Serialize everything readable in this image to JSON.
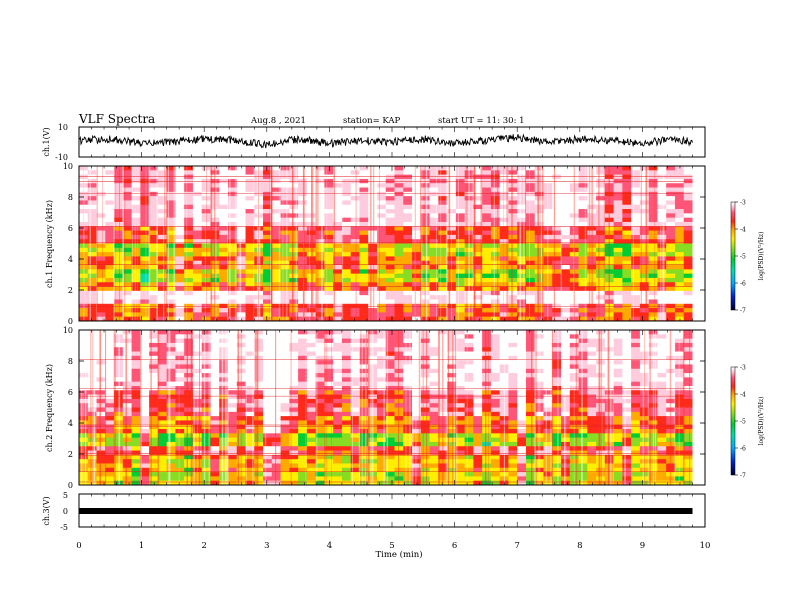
{
  "header": {
    "title": "VLF Spectra",
    "date": "Aug.8 , 2021",
    "station": "station= KAP",
    "start_ut": "start UT = 11: 30: 1"
  },
  "colors": {
    "spectrogram_scale": [
      "#000033",
      "#0022cc",
      "#00aaff",
      "#00ddaa",
      "#00cc33",
      "#88dd22",
      "#ffee00",
      "#ffaa00",
      "#ff2a1a",
      "#ff5577",
      "#ffccdd",
      "#ffffff"
    ]
  },
  "chart_data": [
    {
      "type": "line",
      "name": "ch1-waveform",
      "ylabel": "ch.1(V)",
      "ylim": [
        -10,
        10
      ],
      "yticks": [
        "10",
        "-10"
      ],
      "x": [
        0,
        0.5,
        1,
        1.5,
        2,
        2.5,
        3,
        3.5,
        4,
        4.5,
        5,
        5.5,
        6,
        6.5,
        7,
        7.5,
        8,
        8.5,
        9,
        9.5,
        9.8
      ],
      "y": [
        1,
        2,
        -1,
        0,
        2,
        1,
        -2,
        2,
        -1,
        1,
        0,
        2,
        -1,
        1,
        3,
        0,
        2,
        1,
        -1,
        2,
        0
      ]
    },
    {
      "type": "heatmap",
      "name": "ch1-spectrogram",
      "ylabel": "ch.1  Frequency (kHz)",
      "ylim": [
        0,
        10
      ],
      "yticks": [
        "0",
        "2",
        "4",
        "6",
        "8",
        "10"
      ],
      "colorbar": {
        "label": "log(PSD)(V²/Hz)",
        "ticks": [
          "-3",
          "-4",
          "-5",
          "-6",
          "-7"
        ],
        "range": [
          -7,
          -3
        ]
      },
      "band_levels_by_freq_kHz": [
        {
          "from": 0,
          "to": 1,
          "level": -4.2
        },
        {
          "from": 1,
          "to": 2,
          "level": -3.3
        },
        {
          "from": 2,
          "to": 2.6,
          "level": -4.5
        },
        {
          "from": 2.6,
          "to": 3.4,
          "level": -5.0
        },
        {
          "from": 3.4,
          "to": 4.2,
          "level": -4.4
        },
        {
          "from": 4.2,
          "to": 5.0,
          "level": -4.9
        },
        {
          "from": 5.0,
          "to": 6.0,
          "level": -4.1
        },
        {
          "from": 6.0,
          "to": 10,
          "level": -3.5
        }
      ]
    },
    {
      "type": "heatmap",
      "name": "ch2-spectrogram",
      "ylabel": "ch.2  Frequency (kHz)",
      "ylim": [
        0,
        10
      ],
      "yticks": [
        "0",
        "2",
        "4",
        "6",
        "8",
        "10"
      ],
      "colorbar": {
        "label": "log(PSD)(V²/Hz)",
        "ticks": [
          "-3",
          "-4",
          "-5",
          "-6",
          "-7"
        ],
        "range": [
          -7,
          -3
        ]
      },
      "band_levels_by_freq_kHz": [
        {
          "from": 0,
          "to": 0.8,
          "level": -4.8
        },
        {
          "from": 0.8,
          "to": 2.0,
          "level": -4.6
        },
        {
          "from": 2.0,
          "to": 2.4,
          "level": -4.0
        },
        {
          "from": 2.4,
          "to": 3.2,
          "level": -5.0
        },
        {
          "from": 3.2,
          "to": 4.5,
          "level": -4.2
        },
        {
          "from": 4.5,
          "to": 6.0,
          "level": -3.8
        },
        {
          "from": 6.0,
          "to": 10,
          "level": -3.3
        }
      ]
    },
    {
      "type": "line",
      "name": "ch3-waveform",
      "ylabel": "ch.3(V)",
      "ylim": [
        -5,
        5
      ],
      "yticks": [
        "5",
        "0",
        "-5"
      ],
      "x": [
        0,
        9.8
      ],
      "y": [
        0,
        0
      ]
    }
  ],
  "x_axis": {
    "label": "Time (min)",
    "xlim": [
      0,
      10
    ],
    "ticks": [
      "0",
      "1",
      "2",
      "3",
      "4",
      "5",
      "6",
      "7",
      "8",
      "9",
      "10"
    ],
    "data_end": 9.8
  }
}
